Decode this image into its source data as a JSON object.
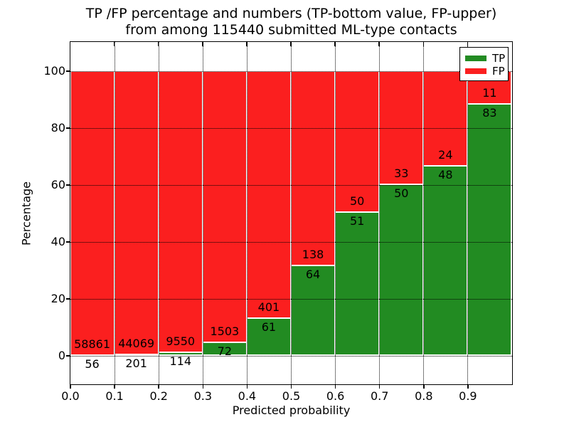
{
  "figure": {
    "title_line1": "TP /FP percentage and numbers (TP-bottom value, FP-upper)",
    "title_line2": "from among 115440 submitted ML-type contacts",
    "xlabel": "Predicted probability",
    "ylabel": "Percentage"
  },
  "legend": {
    "position": "upper-right",
    "items": [
      {
        "label": "TP",
        "color": "#228b22"
      },
      {
        "label": "FP",
        "color": "#fb1f1f"
      }
    ]
  },
  "chart_data": {
    "type": "bar",
    "variant": "stacked-normalized-percent",
    "title": "TP /FP percentage and numbers (TP-bottom value, FP-upper) from among 115440 submitted ML-type contacts",
    "xlabel": "Predicted probability",
    "ylabel": "Percentage",
    "total_contacts": 115440,
    "bin_width": 0.1,
    "bin_starts": [
      0.0,
      0.1,
      0.2,
      0.3,
      0.4,
      0.5,
      0.6,
      0.7,
      0.8,
      0.9
    ],
    "xlim": [
      0.0,
      1.0
    ],
    "ylim": [
      -10,
      110
    ],
    "xtick_labels": [
      "0.0",
      "0.1",
      "0.2",
      "0.3",
      "0.4",
      "0.5",
      "0.6",
      "0.7",
      "0.8",
      "0.9"
    ],
    "ytick_values": [
      0,
      20,
      40,
      60,
      80,
      100
    ],
    "grid": "dotted-black-over-bars",
    "bar_edge_color": "#ffffff",
    "legend_position": "upper right",
    "series": [
      {
        "name": "TP",
        "color": "#228b22",
        "counts": [
          56,
          201,
          114,
          72,
          61,
          64,
          51,
          50,
          48,
          83
        ]
      },
      {
        "name": "FP",
        "color": "#fb1f1f",
        "counts": [
          58861,
          44069,
          9550,
          1503,
          401,
          138,
          50,
          33,
          24,
          11
        ]
      }
    ]
  }
}
